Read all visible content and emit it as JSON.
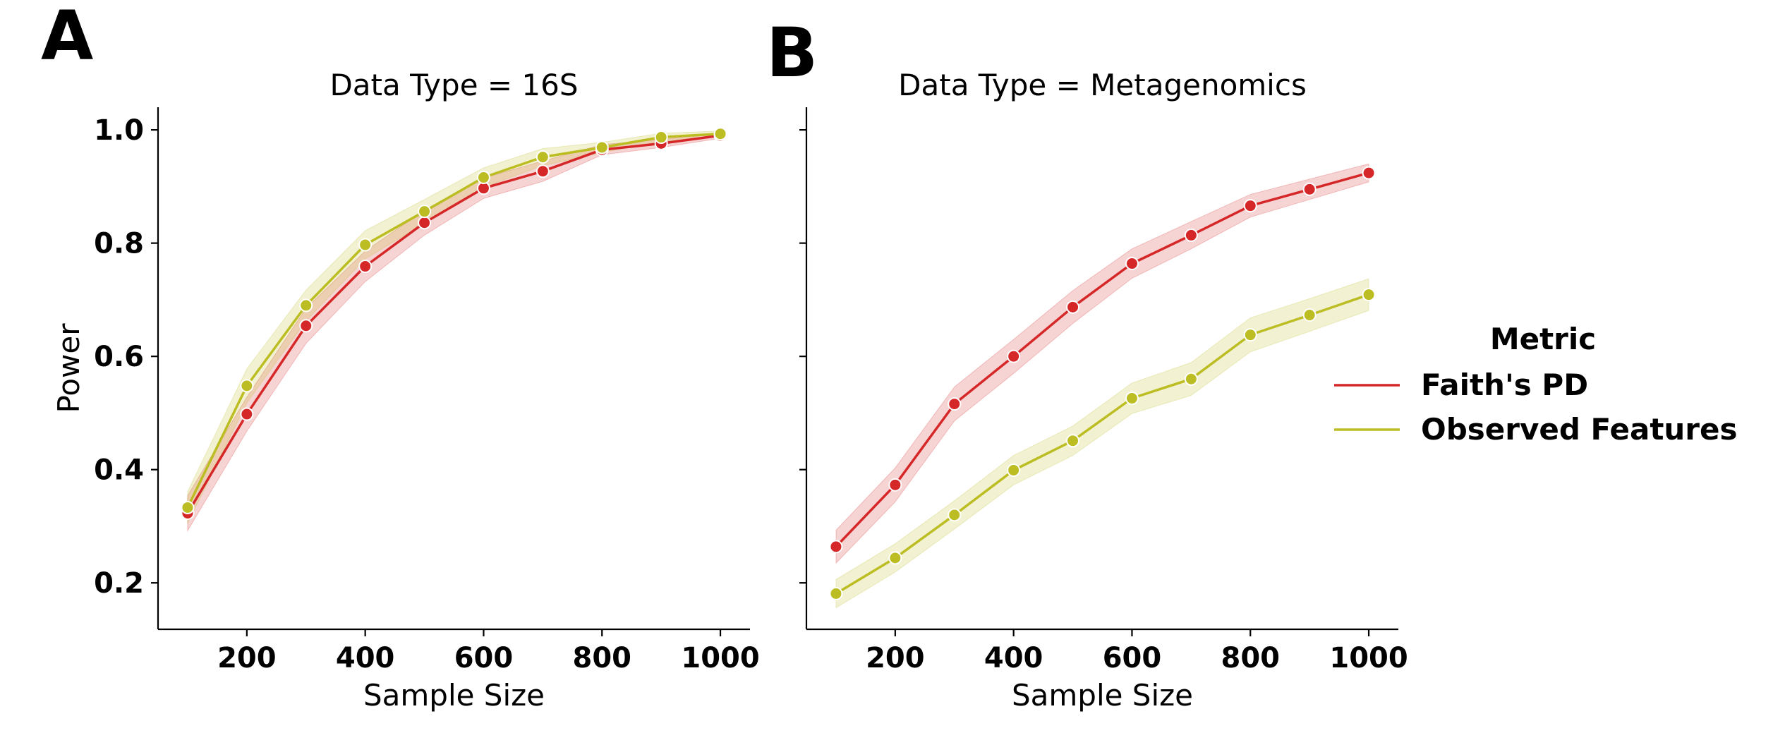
{
  "chart_data": [
    {
      "type": "line",
      "panel_label": "A",
      "title": "Data Type = 16S",
      "xlabel": "Sample Size",
      "ylabel": "Power",
      "xlim": [
        50,
        1050
      ],
      "ylim": [
        0.118,
        1.04
      ],
      "x_ticks": [
        200,
        400,
        600,
        800,
        1000
      ],
      "y_ticks": [
        0.2,
        0.4,
        0.6,
        0.8,
        1.0
      ],
      "grid": false,
      "series": [
        {
          "name": "Faith's PD",
          "color": "#d62728",
          "x": [
            100,
            200,
            300,
            400,
            500,
            600,
            700,
            800,
            900,
            1000
          ],
          "values": [
            0.323,
            0.498,
            0.654,
            0.759,
            0.836,
            0.897,
            0.927,
            0.965,
            0.976,
            0.99
          ],
          "lower": [
            0.292,
            0.468,
            0.623,
            0.732,
            0.814,
            0.879,
            0.909,
            0.956,
            0.969,
            0.985
          ],
          "upper": [
            0.354,
            0.528,
            0.685,
            0.786,
            0.858,
            0.915,
            0.945,
            0.974,
            0.983,
            0.995
          ]
        },
        {
          "name": "Observed Features",
          "color": "#bcbd22",
          "x": [
            100,
            200,
            300,
            400,
            500,
            600,
            700,
            800,
            900,
            1000
          ],
          "values": [
            0.333,
            0.548,
            0.69,
            0.797,
            0.856,
            0.916,
            0.952,
            0.969,
            0.987,
            0.993
          ],
          "lower": [
            0.305,
            0.518,
            0.663,
            0.772,
            0.835,
            0.899,
            0.937,
            0.96,
            0.98,
            0.988
          ],
          "upper": [
            0.361,
            0.578,
            0.717,
            0.822,
            0.877,
            0.933,
            0.967,
            0.978,
            0.994,
            0.998
          ]
        }
      ]
    },
    {
      "type": "line",
      "panel_label": "B",
      "title": "Data Type = Metagenomics",
      "xlabel": "Sample Size",
      "ylabel": "",
      "xlim": [
        50,
        1050
      ],
      "ylim": [
        0.118,
        1.04
      ],
      "x_ticks": [
        200,
        400,
        600,
        800,
        1000
      ],
      "y_ticks": [
        0.2,
        0.4,
        0.6,
        0.8,
        1.0
      ],
      "grid": false,
      "series": [
        {
          "name": "Faith's PD",
          "color": "#d62728",
          "x": [
            100,
            200,
            300,
            400,
            500,
            600,
            700,
            800,
            900,
            1000
          ],
          "values": [
            0.264,
            0.373,
            0.516,
            0.6,
            0.687,
            0.764,
            0.814,
            0.866,
            0.895,
            0.924
          ],
          "lower": [
            0.235,
            0.343,
            0.486,
            0.57,
            0.658,
            0.738,
            0.79,
            0.846,
            0.877,
            0.908
          ],
          "upper": [
            0.293,
            0.403,
            0.546,
            0.63,
            0.716,
            0.79,
            0.838,
            0.886,
            0.913,
            0.94
          ]
        },
        {
          "name": "Observed Features",
          "color": "#bcbd22",
          "x": [
            100,
            200,
            300,
            400,
            500,
            600,
            700,
            800,
            900,
            1000
          ],
          "values": [
            0.181,
            0.244,
            0.32,
            0.399,
            0.451,
            0.526,
            0.56,
            0.638,
            0.673,
            0.709
          ],
          "lower": [
            0.156,
            0.219,
            0.295,
            0.373,
            0.425,
            0.499,
            0.531,
            0.608,
            0.644,
            0.681
          ],
          "upper": [
            0.206,
            0.269,
            0.345,
            0.425,
            0.477,
            0.553,
            0.589,
            0.668,
            0.702,
            0.737
          ]
        }
      ]
    }
  ],
  "legend": {
    "title": "Metric",
    "placement": "right",
    "items": [
      {
        "label": "Faith's PD",
        "color": "#d62728"
      },
      {
        "label": "Observed Features",
        "color": "#bcbd22"
      }
    ]
  }
}
